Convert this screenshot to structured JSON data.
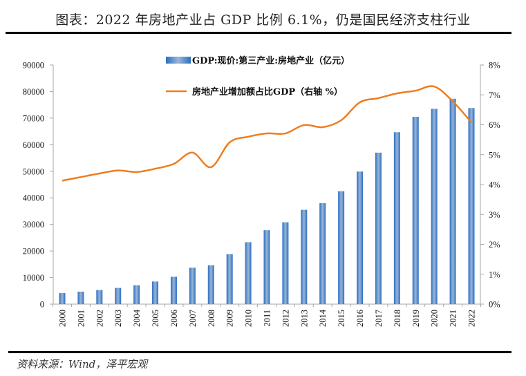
{
  "header": {
    "title": "图表：2022 年房地产业占 GDP 比例 6.1%，仍是国民经济支柱行业"
  },
  "footer": {
    "source": "资料来源：Wind，泽平宏观"
  },
  "chart_data": {
    "type": "bar+line",
    "title": "图表：2022 年房地产业占 GDP 比例 6.1%，仍是国民经济支柱行业",
    "categories": [
      "2000",
      "2001",
      "2002",
      "2003",
      "2004",
      "2005",
      "2006",
      "2007",
      "2008",
      "2009",
      "2010",
      "2011",
      "2012",
      "2013",
      "2014",
      "2015",
      "2016",
      "2017",
      "2018",
      "2019",
      "2020",
      "2021",
      "2022"
    ],
    "series": [
      {
        "name": "GDP:现价:第三产业:房地产业（亿元）",
        "type": "bar",
        "axis": "left",
        "color": "#2e75c8",
        "values": [
          4150,
          4700,
          5300,
          6100,
          7100,
          8500,
          10300,
          13700,
          14600,
          18800,
          23300,
          27800,
          30800,
          35500,
          38000,
          42500,
          49900,
          57000,
          64700,
          70500,
          73500,
          77300,
          73800
        ]
      },
      {
        "name": "房地产业增加额占比GDP（右轴 %）",
        "type": "line",
        "axis": "right",
        "color": "#ed7d1f",
        "values": [
          4.13,
          4.25,
          4.37,
          4.47,
          4.42,
          4.53,
          4.69,
          5.07,
          4.58,
          5.41,
          5.6,
          5.71,
          5.71,
          5.99,
          5.92,
          6.15,
          6.75,
          6.89,
          7.05,
          7.14,
          7.28,
          6.78,
          6.08
        ]
      }
    ],
    "y_left": {
      "range": [
        0,
        90000
      ],
      "ticks": [
        "0",
        "10000",
        "20000",
        "30000",
        "40000",
        "50000",
        "60000",
        "70000",
        "80000",
        "90000"
      ]
    },
    "y_right": {
      "range": [
        0,
        8
      ],
      "ticks": [
        "0%",
        "1%",
        "2%",
        "3%",
        "4%",
        "5%",
        "6%",
        "7%",
        "8%"
      ]
    },
    "xlabel": "",
    "ylabel": "",
    "grid": false,
    "legend_position": "top-center"
  }
}
